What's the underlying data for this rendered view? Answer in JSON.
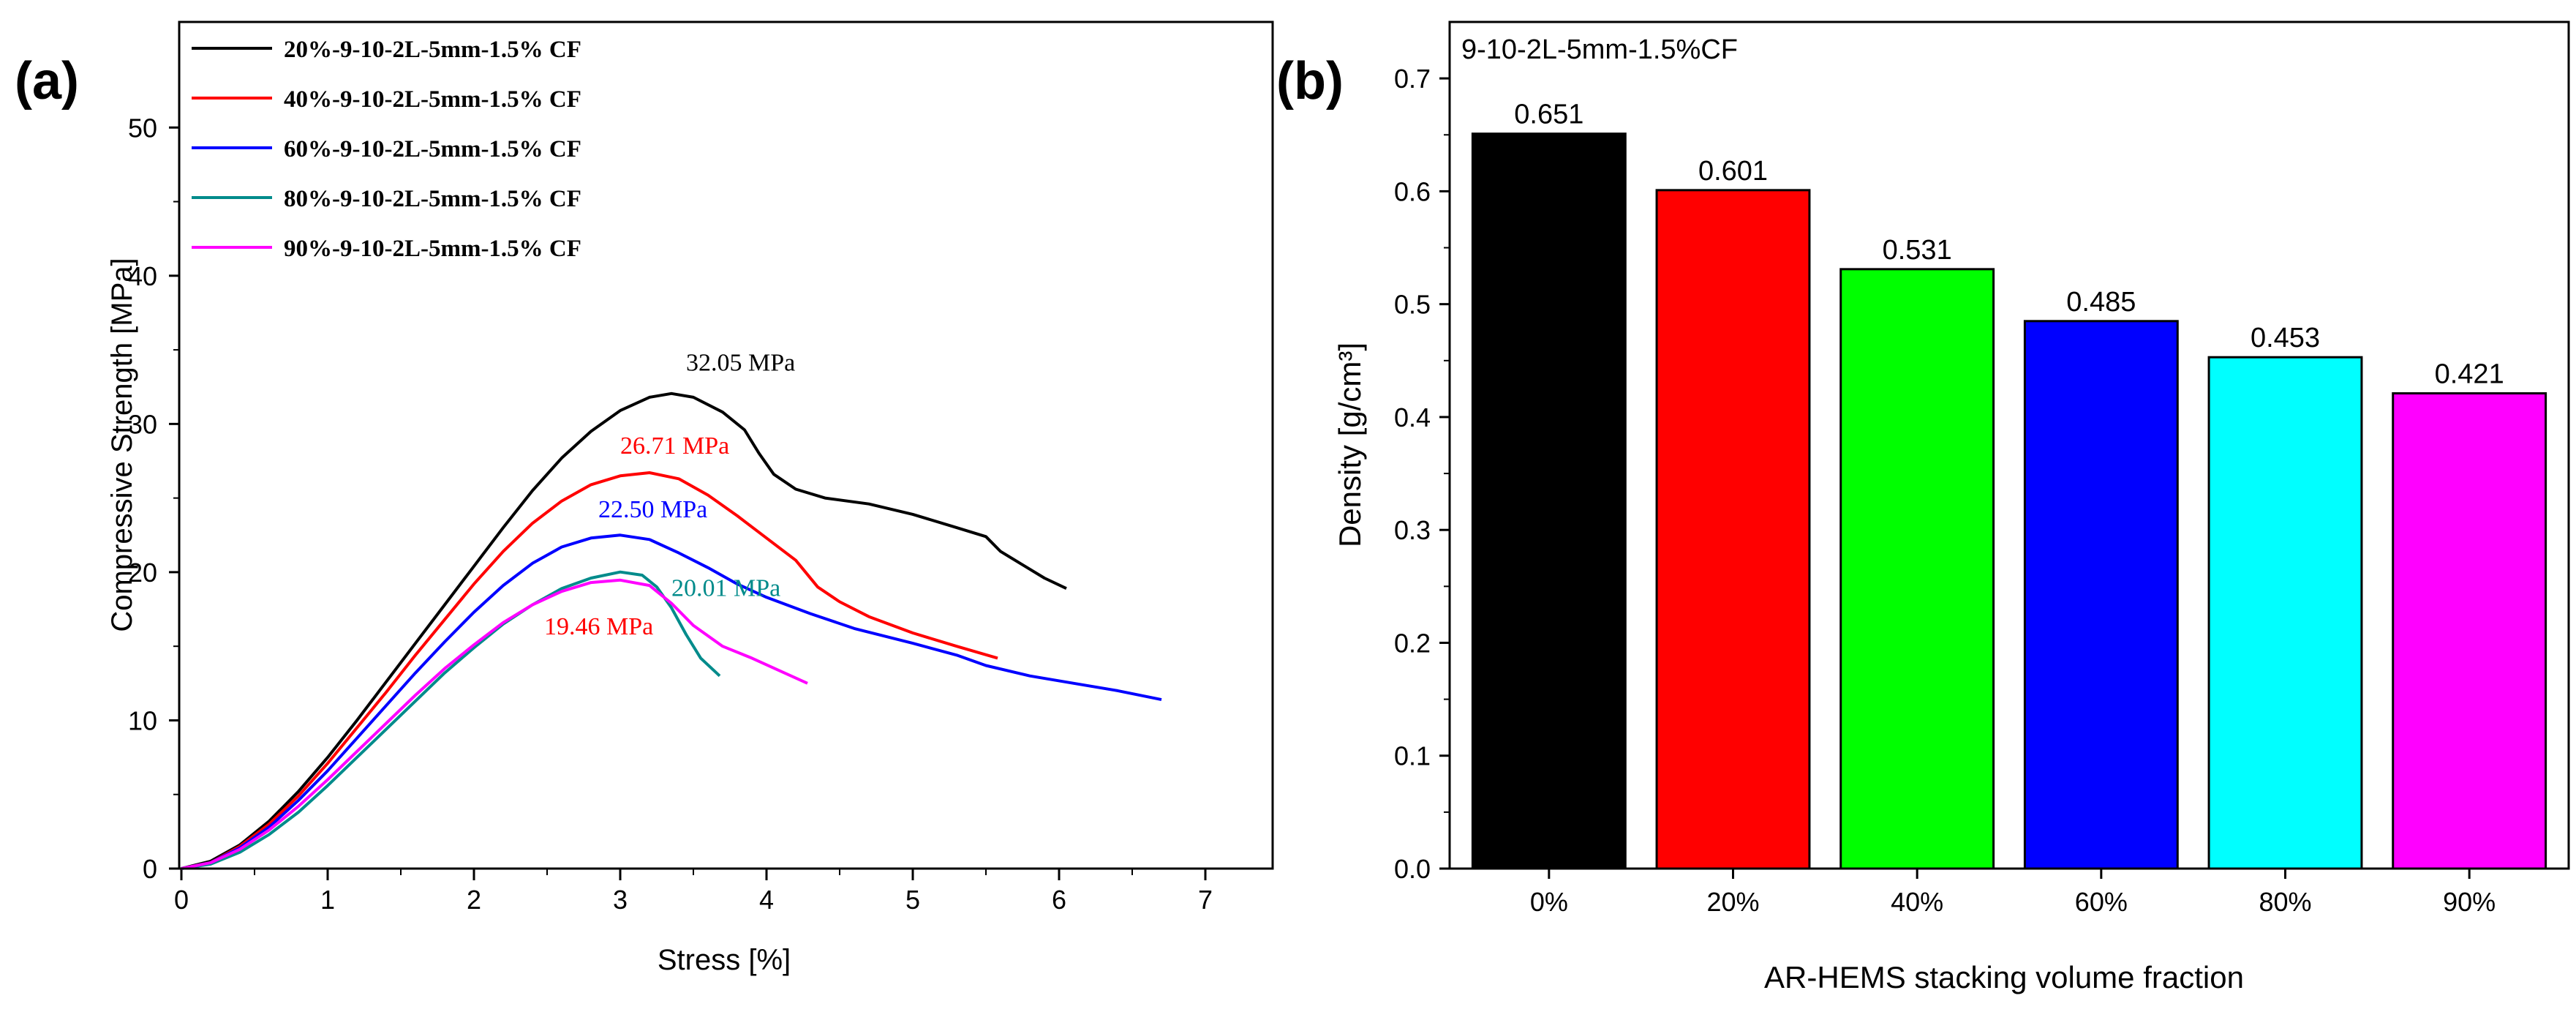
{
  "chart_data": [
    {
      "panel_label": "(a)",
      "type": "line",
      "title": "",
      "xlabel": "Stress [%]",
      "ylabel": "Compressive Strength [MPa]",
      "xlim": [
        0,
        7.5
      ],
      "ylim": [
        0,
        55
      ],
      "xticks": [
        "0",
        "1",
        "2",
        "3",
        "4",
        "5",
        "6",
        "7"
      ],
      "yticks": [
        "0",
        "10",
        "20",
        "30",
        "40",
        "50"
      ],
      "legend_position": "top-left",
      "series": [
        {
          "name": "20%-9-10-2L-5mm-1.5% CF",
          "color": "#000000",
          "peak_label": "32.05 MPa",
          "points": [
            [
              0,
              0
            ],
            [
              0.2,
              0.5
            ],
            [
              0.4,
              1.6
            ],
            [
              0.6,
              3.2
            ],
            [
              0.8,
              5.2
            ],
            [
              1.0,
              7.5
            ],
            [
              1.2,
              10.0
            ],
            [
              1.4,
              12.6
            ],
            [
              1.6,
              15.2
            ],
            [
              1.8,
              17.8
            ],
            [
              2.0,
              20.4
            ],
            [
              2.2,
              23.0
            ],
            [
              2.4,
              25.5
            ],
            [
              2.6,
              27.7
            ],
            [
              2.8,
              29.5
            ],
            [
              3.0,
              30.9
            ],
            [
              3.2,
              31.8
            ],
            [
              3.35,
              32.05
            ],
            [
              3.5,
              31.8
            ],
            [
              3.7,
              30.8
            ],
            [
              3.85,
              29.6
            ],
            [
              3.95,
              28.0
            ],
            [
              4.05,
              26.6
            ],
            [
              4.2,
              25.6
            ],
            [
              4.4,
              25.0
            ],
            [
              4.7,
              24.6
            ],
            [
              5.0,
              23.9
            ],
            [
              5.3,
              23.0
            ],
            [
              5.5,
              22.4
            ],
            [
              5.6,
              21.4
            ],
            [
              5.75,
              20.5
            ],
            [
              5.9,
              19.6
            ],
            [
              6.05,
              18.9
            ]
          ]
        },
        {
          "name": "40%-9-10-2L-5mm-1.5% CF",
          "color": "#ff0000",
          "peak_label": "26.71 MPa",
          "points": [
            [
              0,
              0
            ],
            [
              0.2,
              0.4
            ],
            [
              0.4,
              1.5
            ],
            [
              0.6,
              3.0
            ],
            [
              0.8,
              4.9
            ],
            [
              1.0,
              7.1
            ],
            [
              1.2,
              9.5
            ],
            [
              1.4,
              11.9
            ],
            [
              1.6,
              14.4
            ],
            [
              1.8,
              16.8
            ],
            [
              2.0,
              19.2
            ],
            [
              2.2,
              21.4
            ],
            [
              2.4,
              23.3
            ],
            [
              2.6,
              24.8
            ],
            [
              2.8,
              25.9
            ],
            [
              3.0,
              26.5
            ],
            [
              3.2,
              26.71
            ],
            [
              3.4,
              26.3
            ],
            [
              3.6,
              25.2
            ],
            [
              3.8,
              23.8
            ],
            [
              4.0,
              22.3
            ],
            [
              4.2,
              20.8
            ],
            [
              4.35,
              19.0
            ],
            [
              4.5,
              18.0
            ],
            [
              4.7,
              17.0
            ],
            [
              5.0,
              15.9
            ],
            [
              5.3,
              15.0
            ],
            [
              5.58,
              14.2
            ]
          ]
        },
        {
          "name": "60%-9-10-2L-5mm-1.5% CF",
          "color": "#0000ff",
          "peak_label": "22.50 MPa",
          "points": [
            [
              0,
              0
            ],
            [
              0.2,
              0.4
            ],
            [
              0.4,
              1.4
            ],
            [
              0.6,
              2.8
            ],
            [
              0.8,
              4.6
            ],
            [
              1.0,
              6.6
            ],
            [
              1.2,
              8.8
            ],
            [
              1.4,
              11.0
            ],
            [
              1.6,
              13.2
            ],
            [
              1.8,
              15.3
            ],
            [
              2.0,
              17.3
            ],
            [
              2.2,
              19.1
            ],
            [
              2.4,
              20.6
            ],
            [
              2.6,
              21.7
            ],
            [
              2.8,
              22.3
            ],
            [
              3.0,
              22.5
            ],
            [
              3.2,
              22.2
            ],
            [
              3.4,
              21.3
            ],
            [
              3.6,
              20.3
            ],
            [
              3.8,
              19.2
            ],
            [
              4.0,
              18.3
            ],
            [
              4.3,
              17.2
            ],
            [
              4.6,
              16.2
            ],
            [
              5.0,
              15.2
            ],
            [
              5.3,
              14.4
            ],
            [
              5.5,
              13.7
            ],
            [
              5.8,
              13.0
            ],
            [
              6.1,
              12.5
            ],
            [
              6.4,
              12.0
            ],
            [
              6.7,
              11.4
            ]
          ]
        },
        {
          "name": "80%-9-10-2L-5mm-1.5% CF",
          "color": "#008b8b",
          "peak_label": "20.01 MPa",
          "points": [
            [
              0,
              0
            ],
            [
              0.2,
              0.3
            ],
            [
              0.4,
              1.1
            ],
            [
              0.6,
              2.3
            ],
            [
              0.8,
              3.8
            ],
            [
              1.0,
              5.6
            ],
            [
              1.2,
              7.5
            ],
            [
              1.4,
              9.4
            ],
            [
              1.6,
              11.3
            ],
            [
              1.8,
              13.2
            ],
            [
              2.0,
              14.9
            ],
            [
              2.2,
              16.5
            ],
            [
              2.4,
              17.8
            ],
            [
              2.6,
              18.9
            ],
            [
              2.8,
              19.6
            ],
            [
              3.0,
              20.01
            ],
            [
              3.15,
              19.8
            ],
            [
              3.25,
              19.0
            ],
            [
              3.35,
              17.6
            ],
            [
              3.45,
              15.8
            ],
            [
              3.55,
              14.2
            ],
            [
              3.68,
              13.0
            ]
          ]
        },
        {
          "name": "90%-9-10-2L-5mm-1.5% CF",
          "color": "#ff00ff",
          "peak_label": "19.46 MPa",
          "points": [
            [
              0,
              0
            ],
            [
              0.2,
              0.4
            ],
            [
              0.4,
              1.3
            ],
            [
              0.6,
              2.6
            ],
            [
              0.8,
              4.2
            ],
            [
              1.0,
              6.0
            ],
            [
              1.2,
              7.9
            ],
            [
              1.4,
              9.8
            ],
            [
              1.6,
              11.7
            ],
            [
              1.8,
              13.5
            ],
            [
              2.0,
              15.1
            ],
            [
              2.2,
              16.6
            ],
            [
              2.4,
              17.8
            ],
            [
              2.6,
              18.7
            ],
            [
              2.8,
              19.3
            ],
            [
              3.0,
              19.46
            ],
            [
              3.2,
              19.1
            ],
            [
              3.35,
              17.9
            ],
            [
              3.5,
              16.4
            ],
            [
              3.7,
              15.0
            ],
            [
              3.9,
              14.2
            ],
            [
              4.1,
              13.3
            ],
            [
              4.28,
              12.5
            ]
          ]
        }
      ],
      "peak_annotations": [
        {
          "text": "32.05 MPa",
          "x": 3.45,
          "y": 33.6,
          "color": "#000000"
        },
        {
          "text": "26.71 MPa",
          "x": 3.0,
          "y": 28.0,
          "color": "#ff0000"
        },
        {
          "text": "22.50 MPa",
          "x": 2.85,
          "y": 23.7,
          "color": "#0000ff"
        },
        {
          "text": "20.01 MPa",
          "x": 3.35,
          "y": 18.4,
          "color": "#008b8b"
        },
        {
          "text": "19.46 MPa",
          "x": 2.48,
          "y": 15.8,
          "color": "#ff0000"
        }
      ]
    },
    {
      "panel_label": "(b)",
      "type": "bar",
      "title": "9-10-2L-5mm-1.5%CF",
      "xlabel": "AR-HEMS stacking volume fraction",
      "ylabel": "Density [g/cm³]",
      "ylim": [
        0,
        0.75
      ],
      "yticks": [
        "0.0",
        "0.1",
        "0.2",
        "0.3",
        "0.4",
        "0.5",
        "0.6",
        "0.7"
      ],
      "categories": [
        "0%",
        "20%",
        "40%",
        "60%",
        "80%",
        "90%"
      ],
      "values": [
        0.651,
        0.601,
        0.531,
        0.485,
        0.453,
        0.421
      ],
      "value_labels": [
        "0.651",
        "0.601",
        "0.531",
        "0.485",
        "0.453",
        "0.421"
      ],
      "colors": [
        "#000000",
        "#ff0000",
        "#00ff00",
        "#0000ff",
        "#00ffff",
        "#ff00ff"
      ]
    }
  ]
}
